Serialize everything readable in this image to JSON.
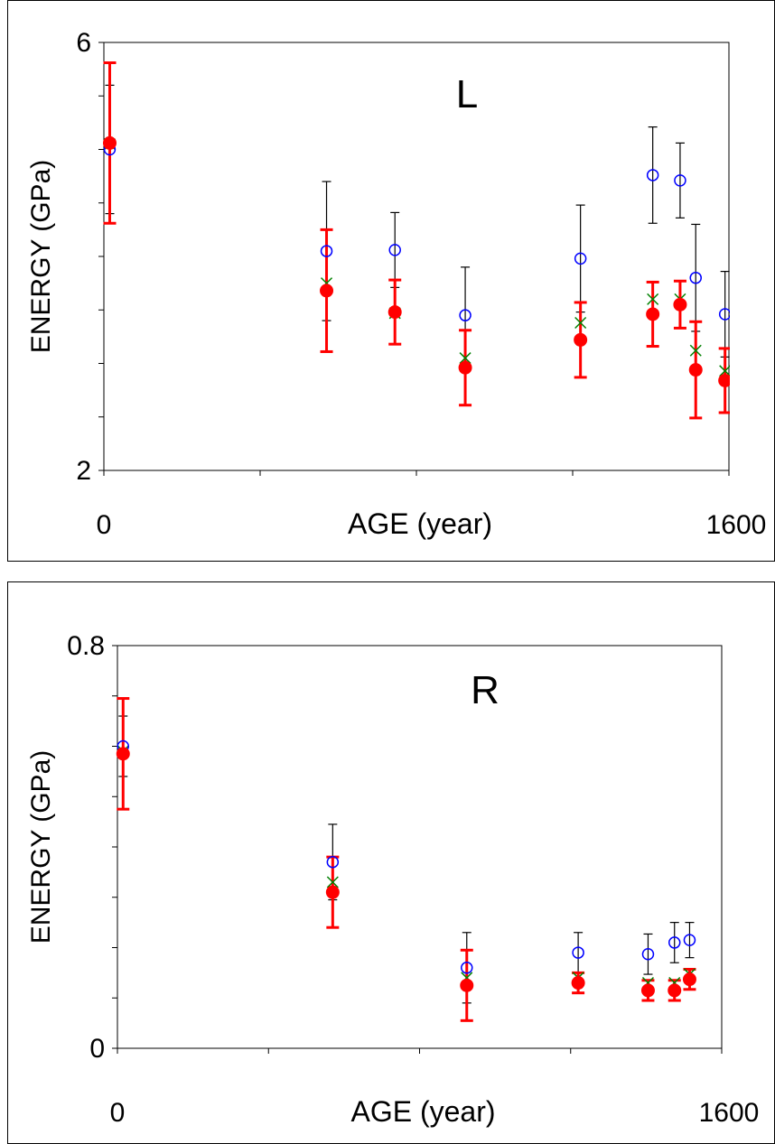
{
  "chart_data": [
    {
      "type": "scatter",
      "title": "L",
      "xlabel": "AGE (year)",
      "ylabel": "ENERGY (GPa)",
      "xlim": [
        0,
        1600
      ],
      "ylim": [
        2,
        6
      ],
      "x_tick_labels": [
        "0",
        "1600"
      ],
      "y_tick_labels": [
        "6",
        "2"
      ],
      "grid": false,
      "legend": "none",
      "series": [
        {
          "marker": "open-circle",
          "color": "#0000ff",
          "points": [
            {
              "x": 15,
              "y": 5.0,
              "err": 0.6
            },
            {
              "x": 570,
              "y": 4.05,
              "err": 0.65
            },
            {
              "x": 745,
              "y": 4.06,
              "err": 0.35
            },
            {
              "x": 925,
              "y": 3.45,
              "err": 0.45
            },
            {
              "x": 1220,
              "y": 3.98,
              "err": 0.5
            },
            {
              "x": 1405,
              "y": 4.76,
              "err": 0.45
            },
            {
              "x": 1475,
              "y": 4.71,
              "err": 0.35
            },
            {
              "x": 1515,
              "y": 3.8,
              "err": 0.5
            },
            {
              "x": 1590,
              "y": 3.46,
              "err": 0.4
            }
          ]
        },
        {
          "marker": "x",
          "color": "#008000",
          "points": [
            {
              "x": 15,
              "y": 5.05
            },
            {
              "x": 570,
              "y": 3.75
            },
            {
              "x": 745,
              "y": 3.47
            },
            {
              "x": 925,
              "y": 3.05
            },
            {
              "x": 1220,
              "y": 3.38
            },
            {
              "x": 1405,
              "y": 3.6
            },
            {
              "x": 1475,
              "y": 3.6
            },
            {
              "x": 1515,
              "y": 3.12
            },
            {
              "x": 1590,
              "y": 2.93
            }
          ]
        },
        {
          "marker": "filled-circle",
          "color": "#ff0000",
          "points": [
            {
              "x": 15,
              "y": 5.06,
              "err": 0.75
            },
            {
              "x": 570,
              "y": 3.68,
              "err": 0.57
            },
            {
              "x": 745,
              "y": 3.48,
              "err": 0.3
            },
            {
              "x": 925,
              "y": 2.96,
              "err": 0.35
            },
            {
              "x": 1220,
              "y": 3.22,
              "err": 0.35
            },
            {
              "x": 1405,
              "y": 3.46,
              "err": 0.3
            },
            {
              "x": 1475,
              "y": 3.55,
              "err": 0.22
            },
            {
              "x": 1515,
              "y": 2.94,
              "err": 0.45
            },
            {
              "x": 1590,
              "y": 2.84,
              "err": 0.3
            }
          ]
        }
      ]
    },
    {
      "type": "scatter",
      "title": "R",
      "xlabel": "AGE (year)",
      "ylabel": "ENERGY (GPa)",
      "xlim": [
        0,
        1600
      ],
      "ylim": [
        0,
        0.8
      ],
      "x_tick_labels": [
        "0",
        "1600"
      ],
      "y_tick_labels": [
        "0.8",
        "0"
      ],
      "grid": false,
      "legend": "none",
      "series": [
        {
          "marker": "open-circle",
          "color": "#0000ff",
          "points": [
            {
              "x": 15,
              "y": 0.6,
              "err": 0.06
            },
            {
              "x": 570,
              "y": 0.37,
              "err": 0.075
            },
            {
              "x": 925,
              "y": 0.16,
              "err": 0.07
            },
            {
              "x": 1220,
              "y": 0.19,
              "err": 0.04
            },
            {
              "x": 1405,
              "y": 0.187,
              "err": 0.04
            },
            {
              "x": 1475,
              "y": 0.21,
              "err": 0.04
            },
            {
              "x": 1515,
              "y": 0.215,
              "err": 0.035
            }
          ]
        },
        {
          "marker": "x",
          "color": "#008000",
          "points": [
            {
              "x": 15,
              "y": 0.59
            },
            {
              "x": 570,
              "y": 0.33
            },
            {
              "x": 925,
              "y": 0.14
            },
            {
              "x": 1220,
              "y": 0.14
            },
            {
              "x": 1405,
              "y": 0.13
            },
            {
              "x": 1475,
              "y": 0.13
            },
            {
              "x": 1515,
              "y": 0.147
            }
          ]
        },
        {
          "marker": "filled-circle",
          "color": "#ff0000",
          "points": [
            {
              "x": 15,
              "y": 0.585,
              "err": 0.11
            },
            {
              "x": 570,
              "y": 0.31,
              "err": 0.07
            },
            {
              "x": 925,
              "y": 0.125,
              "err": 0.07
            },
            {
              "x": 1220,
              "y": 0.13,
              "err": 0.02
            },
            {
              "x": 1405,
              "y": 0.115,
              "err": 0.02
            },
            {
              "x": 1475,
              "y": 0.115,
              "err": 0.02
            },
            {
              "x": 1515,
              "y": 0.137,
              "err": 0.02
            }
          ]
        }
      ]
    }
  ]
}
